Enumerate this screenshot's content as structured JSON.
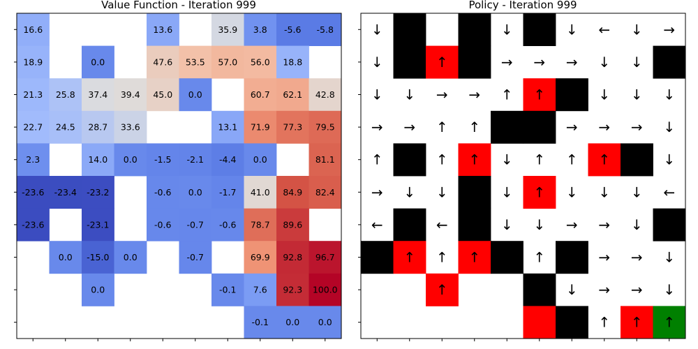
{
  "chart_data": [
    {
      "type": "heatmap",
      "title": "Value Function - Iteration 999",
      "rows": 10,
      "cols": 10,
      "color_scale": {
        "min": -23.6,
        "max": 100.0,
        "low": "#3b4cc0",
        "mid": "#dddddd",
        "high": "#b40426"
      },
      "values": [
        [
          16.6,
          null,
          null,
          null,
          13.6,
          null,
          35.9,
          3.8,
          -5.6,
          -5.8
        ],
        [
          18.9,
          null,
          0.0,
          null,
          47.6,
          53.5,
          57.0,
          56.0,
          18.8,
          null
        ],
        [
          21.3,
          25.8,
          37.4,
          39.4,
          45.0,
          0.0,
          null,
          60.7,
          62.1,
          42.8
        ],
        [
          22.7,
          24.5,
          28.7,
          33.6,
          null,
          null,
          13.1,
          71.9,
          77.3,
          79.5
        ],
        [
          2.3,
          null,
          14.0,
          0.0,
          -1.5,
          -2.1,
          -4.4,
          0.0,
          null,
          81.1
        ],
        [
          -23.6,
          -23.4,
          -23.2,
          null,
          -0.6,
          0.0,
          -1.7,
          41.0,
          84.9,
          82.4
        ],
        [
          -23.6,
          null,
          -23.1,
          null,
          -0.6,
          -0.7,
          -0.6,
          78.7,
          89.6,
          null
        ],
        [
          null,
          0.0,
          -15.0,
          0.0,
          null,
          -0.7,
          null,
          69.9,
          92.8,
          96.7
        ],
        [
          null,
          null,
          0.0,
          null,
          null,
          null,
          -0.1,
          7.6,
          92.3,
          100.0
        ],
        [
          null,
          null,
          null,
          null,
          null,
          null,
          null,
          -0.1,
          0.0,
          0.0
        ]
      ]
    },
    {
      "type": "grid",
      "title": "Policy - Iteration 999",
      "rows": 10,
      "cols": 10,
      "legend": {
        "wall": "#000000",
        "trap": "#ff0000",
        "goal": "#008000",
        "open": "#ffffff"
      },
      "cell_types": [
        [
          "open",
          "wall",
          "open",
          "wall",
          "open",
          "wall",
          "open",
          "open",
          "open",
          "open"
        ],
        [
          "open",
          "wall",
          "trap",
          "wall",
          "open",
          "open",
          "open",
          "open",
          "open",
          "wall"
        ],
        [
          "open",
          "open",
          "open",
          "open",
          "open",
          "trap",
          "wall",
          "open",
          "open",
          "open"
        ],
        [
          "open",
          "open",
          "open",
          "open",
          "wall",
          "wall",
          "open",
          "open",
          "open",
          "open"
        ],
        [
          "open",
          "wall",
          "open",
          "trap",
          "open",
          "open",
          "open",
          "trap",
          "wall",
          "open"
        ],
        [
          "open",
          "open",
          "open",
          "wall",
          "open",
          "trap",
          "open",
          "open",
          "open",
          "open"
        ],
        [
          "open",
          "wall",
          "open",
          "wall",
          "open",
          "open",
          "open",
          "open",
          "open",
          "wall"
        ],
        [
          "wall",
          "trap",
          "open",
          "trap",
          "wall",
          "open",
          "wall",
          "open",
          "open",
          "open"
        ],
        [
          "open",
          "open",
          "trap",
          "open",
          "open",
          "wall",
          "open",
          "open",
          "open",
          "open"
        ],
        [
          "open",
          "open",
          "open",
          "open",
          "open",
          "trap",
          "wall",
          "open",
          "trap",
          "goal"
        ]
      ],
      "arrows": [
        [
          "↓",
          "",
          "",
          "",
          "↓",
          "",
          "↓",
          "←",
          "↓",
          "→"
        ],
        [
          "↓",
          "",
          "↑",
          "",
          "→",
          "→",
          "→",
          "↓",
          "↓",
          ""
        ],
        [
          "↓",
          "↓",
          "→",
          "→",
          "↑",
          "↑",
          "",
          "↓",
          "↓",
          "↓"
        ],
        [
          "→",
          "→",
          "↑",
          "↑",
          "",
          "",
          "→",
          "→",
          "→",
          "↓"
        ],
        [
          "↑",
          "",
          "↑",
          "↑",
          "↓",
          "↑",
          "↑",
          "↑",
          "",
          "↓"
        ],
        [
          "→",
          "↓",
          "↓",
          "",
          "↓",
          "↑",
          "↓",
          "↓",
          "↓",
          "←"
        ],
        [
          "←",
          "",
          "←",
          "",
          "↓",
          "↓",
          "→",
          "→",
          "↓",
          ""
        ],
        [
          "",
          "↑",
          "↑",
          "↑",
          "",
          "↑",
          "",
          "→",
          "→",
          "↓"
        ],
        [
          "",
          "",
          "↑",
          "",
          "",
          "",
          "↓",
          "→",
          "→",
          "↓"
        ],
        [
          "",
          "",
          "",
          "",
          "",
          "",
          "",
          "↑",
          "↑",
          "↑"
        ]
      ]
    }
  ]
}
